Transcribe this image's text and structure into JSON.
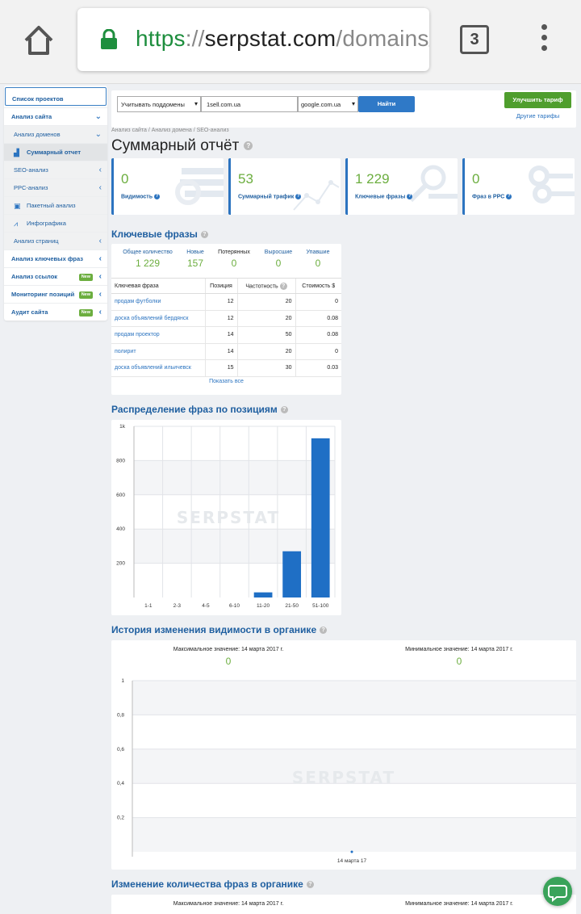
{
  "browser": {
    "url_scheme": "https",
    "url_sep": "://",
    "url_host": "serpstat.com",
    "url_path": "/domains/i",
    "tab_count": "3"
  },
  "sidebar": {
    "projects": "Список проектов",
    "site_analysis": "Анализ сайта",
    "domain_analysis": "Анализ доменов",
    "summary_report": "Суммарный отчет",
    "seo_analysis": "SEO-анализ",
    "ppc_analysis": "PPC-анализ",
    "batch_analysis": "Пакетный анализ",
    "infographics": "Инфографика",
    "page_analysis": "Анализ страниц",
    "keyword_analysis": "Анализ ключевых фраз",
    "link_analysis": "Анализ ссылок",
    "position_monitoring": "Мониторинг позиций",
    "site_audit": "Аудит сайта",
    "new_badge": "New"
  },
  "search": {
    "subdomains": "Учитывать поддомены",
    "domain": "1sell.com.ua",
    "engine": "google.com.ua",
    "find": "Найти",
    "upgrade": "Улучшить тариф",
    "other_plans": "Другие тарифы"
  },
  "breadcrumb": "Анализ сайта / Анализ домена / SEO-анализ",
  "page_title": "Суммарный отчёт",
  "cards": [
    {
      "value": "0",
      "label": "Видимость"
    },
    {
      "value": "53",
      "label": "Суммарный трафик"
    },
    {
      "value": "1 229",
      "label": "Ключевые фразы"
    },
    {
      "value": "0",
      "label": "Фраз в PPC"
    }
  ],
  "keywords": {
    "title": "Ключевые фразы",
    "stats": [
      {
        "label": "Общее количество",
        "value": "1 229"
      },
      {
        "label": "Новые",
        "value": "157"
      },
      {
        "label": "Потерянных",
        "value": "0"
      },
      {
        "label": "Выросшие",
        "value": "0"
      },
      {
        "label": "Упавшие",
        "value": "0"
      }
    ],
    "columns": {
      "keyword": "Ключевая фраза",
      "position": "Позиция",
      "frequency": "Частотность",
      "cost": "Стоимость $"
    },
    "rows": [
      {
        "keyword": "продам футболки",
        "position": "12",
        "frequency": "20",
        "cost": "0"
      },
      {
        "keyword": "доска объявлений бердянск",
        "position": "12",
        "frequency": "20",
        "cost": "0.08"
      },
      {
        "keyword": "продам проектор",
        "position": "14",
        "frequency": "50",
        "cost": "0.08"
      },
      {
        "keyword": "полирит",
        "position": "14",
        "frequency": "20",
        "cost": "0"
      },
      {
        "keyword": "доска объявлений ильичевск",
        "position": "15",
        "frequency": "30",
        "cost": "0.03"
      }
    ],
    "show_all": "Показать все"
  },
  "distribution_title": "Распределение фраз по позициям",
  "visibility_title": "История изменения видимости в органике",
  "phrases_title": "Изменение количества фраз в органике",
  "visibility_stats": {
    "max_label": "Максимальное значение: 14 марта 2017 г.",
    "max_value": "0",
    "min_label": "Минимальное значение: 14 марта 2017 г.",
    "min_value": "0"
  },
  "phrases_stats": {
    "max_label": "Максимальное значение: 14 марта 2017 г.",
    "min_label": "Минимальное значение: 14 марта 2017 г."
  },
  "watermark": "SERPSTAT",
  "chart_data": [
    {
      "type": "bar",
      "title": "Распределение фраз по позициям",
      "categories": [
        "1-1",
        "2-3",
        "4-5",
        "6-10",
        "11-20",
        "21-50",
        "51-100"
      ],
      "values": [
        0,
        0,
        0,
        0,
        30,
        270,
        930
      ],
      "ylim": [
        0,
        1000
      ],
      "yticks": [
        200,
        400,
        600,
        800,
        1000
      ],
      "ytick_labels": [
        "200",
        "400",
        "600",
        "800",
        "1k"
      ],
      "color": "#1f6fc5"
    },
    {
      "type": "scatter",
      "title": "История изменения видимости в органике",
      "x": [
        "14 марта 17"
      ],
      "values": [
        0
      ],
      "ylim": [
        0,
        1
      ],
      "yticks": [
        0.2,
        0.4,
        0.6,
        0.8,
        1
      ],
      "ytick_labels": [
        "0,2",
        "0,4",
        "0,6",
        "0,8",
        "1"
      ],
      "color": "#1f6fc5"
    }
  ]
}
